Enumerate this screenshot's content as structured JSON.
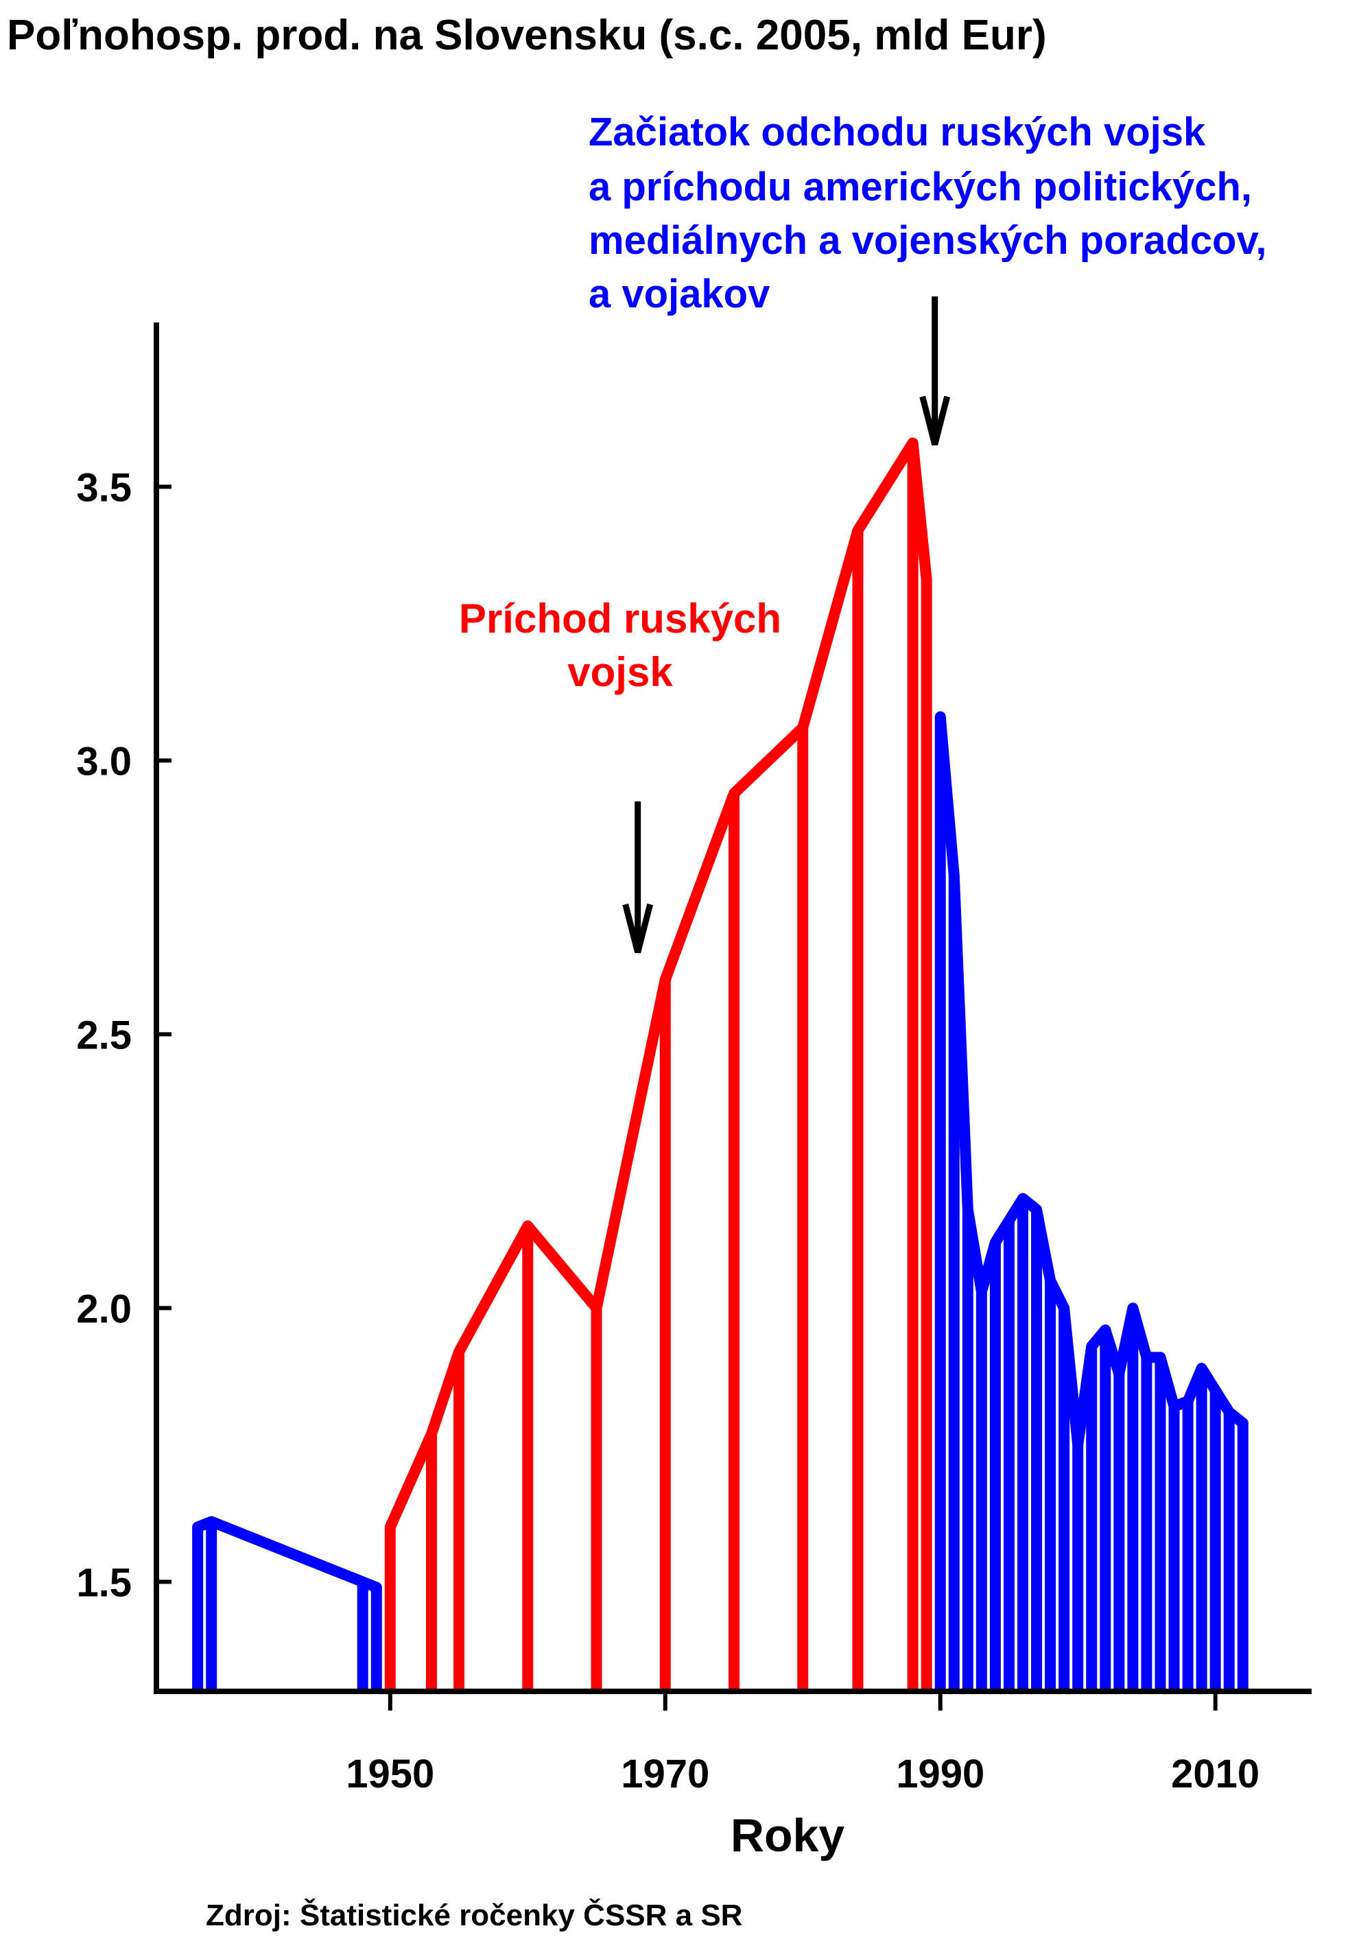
{
  "chart_data": {
    "type": "area",
    "title": "Poľnohosp. prod. na Slovensku (s.c. 2005, mld Eur)",
    "xlabel": "Roky",
    "ylabel": "",
    "source": "Zdroj: Štatistické ročenky ČSSR a SR",
    "xlim": [
      1933,
      2017
    ],
    "ylim": [
      1.3,
      3.8
    ],
    "x_ticks": [
      1950,
      1970,
      1990,
      2010
    ],
    "y_ticks": [
      1.5,
      2.0,
      2.5,
      3.0,
      3.5
    ],
    "y_tick_labels": [
      "1.5",
      "2.0",
      "2.5",
      "3.0",
      "3.5"
    ],
    "grid": false,
    "colors": {
      "blue": "#0000ff",
      "red": "#ff0000"
    },
    "series": [
      {
        "color": "#0000ff",
        "x": [
          1936,
          1937,
          1948,
          1949
        ],
        "y": [
          1.6,
          1.61,
          1.5,
          1.49
        ]
      },
      {
        "color": "#ff0000",
        "x": [
          1950,
          1953,
          1955,
          1960,
          1965,
          1970,
          1975,
          1980,
          1984,
          1988,
          1989
        ],
        "y": [
          1.6,
          1.77,
          1.92,
          2.15,
          2.0,
          2.6,
          2.94,
          3.06,
          3.42,
          3.58,
          3.33
        ]
      },
      {
        "color": "#0000ff",
        "x": [
          1990,
          1991,
          1992,
          1993,
          1994,
          1995,
          1996,
          1997,
          1998,
          1999,
          2000,
          2001,
          2002,
          2003,
          2004,
          2005,
          2006,
          2007,
          2008,
          2009,
          2010,
          2011,
          2012
        ],
        "y": [
          3.08,
          2.79,
          2.18,
          2.03,
          2.12,
          2.16,
          2.2,
          2.18,
          2.05,
          2.0,
          1.75,
          1.93,
          1.96,
          1.88,
          2.0,
          1.91,
          1.91,
          1.82,
          1.83,
          1.89,
          1.85,
          1.81,
          1.79
        ]
      }
    ],
    "annotations": [
      {
        "lines": [
          "Začiatok odchodu ruských vojsk",
          "a príchodu amerických politických,",
          "mediálnych a vojenských poradcov,",
          "a vojakov"
        ],
        "color": "#0000ff",
        "arrow_x": 1990
      },
      {
        "lines": [
          "Príchod ruských",
          "vojsk"
        ],
        "color": "#ff0000",
        "arrow_x": 1968
      }
    ]
  }
}
